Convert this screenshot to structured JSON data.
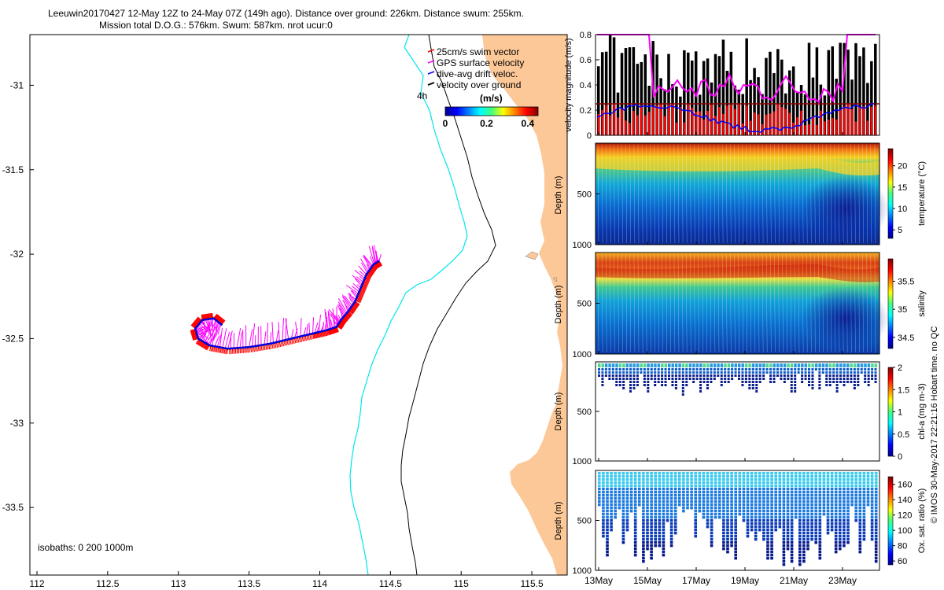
{
  "title": {
    "line1": "Leeuwin20170427 12-May 12Z to 24-May 07Z (149h ago). Distance over ground: 226km. Distance swum: 255km.",
    "line2": "Mission total D.O.G.: 576km. Swum: 587km. nrot ucur:0"
  },
  "side_note": "© IMOS 30-May-2017 22:21:16 Hobart time. no QC",
  "colors": {
    "land": "#fcc898",
    "isobath_200": "#000000",
    "isobath_1000": "#00e5ee",
    "swim": "#ff0000",
    "gps": "#ff00ff",
    "drift": "#0000ff",
    "ground": "#000000"
  },
  "chart_data": [
    {
      "id": "map",
      "type": "scatter",
      "x_ticks": [
        "112",
        "112.5",
        "113",
        "113.5",
        "114",
        "114.5",
        "115",
        "115.5"
      ],
      "y_ticks": [
        "-31",
        "-31.5",
        "-32",
        "-32.5",
        "-33",
        "-33.5"
      ],
      "xlim": [
        111.95,
        115.75
      ],
      "ylim": [
        -33.9,
        -30.7
      ],
      "legend": {
        "placement": "top-right",
        "items": [
          "25cm/s swim vector",
          "GPS surface velocity",
          "dive-avg drift veloc.",
          "velocity over ground"
        ]
      },
      "colorbar": {
        "title": "(m/s)",
        "ticks": [
          "0",
          "0.2",
          "0.4"
        ],
        "range": [
          0,
          0.45
        ]
      },
      "label_4h": "4h",
      "isobaths_note": "isobaths: 0   200   1000m",
      "track": [
        [
          114.42,
          -32.04
        ],
        [
          114.38,
          -32.06
        ],
        [
          114.33,
          -32.12
        ],
        [
          114.29,
          -32.2
        ],
        [
          114.25,
          -32.28
        ],
        [
          114.2,
          -32.34
        ],
        [
          114.15,
          -32.39
        ],
        [
          114.12,
          -32.43
        ],
        [
          114.05,
          -32.45
        ],
        [
          113.95,
          -32.47
        ],
        [
          113.8,
          -32.5
        ],
        [
          113.65,
          -32.53
        ],
        [
          113.5,
          -32.55
        ],
        [
          113.35,
          -32.56
        ],
        [
          113.22,
          -32.54
        ],
        [
          113.14,
          -32.5
        ],
        [
          113.12,
          -32.44
        ],
        [
          113.17,
          -32.39
        ],
        [
          113.25,
          -32.38
        ],
        [
          113.31,
          -32.42
        ]
      ]
    },
    {
      "id": "velocity",
      "type": "bar",
      "ylabel": "velocity magnitude (m/s)",
      "y_ticks": [
        "0",
        "0.2",
        "0.4",
        "0.6",
        "0.8"
      ],
      "ylim": [
        0,
        0.8
      ],
      "reference_line": 0.25
    },
    {
      "id": "temperature",
      "type": "heatmap",
      "ylabel": "Depth (m)",
      "y_ticks": [
        "500",
        "1000"
      ],
      "colorbar_label": "temperature (°C)",
      "colorbar_ticks": [
        "5",
        "10",
        "15",
        "20"
      ],
      "colorbar_range": [
        3,
        24
      ]
    },
    {
      "id": "salinity",
      "type": "heatmap",
      "ylabel": "Depth (m)",
      "y_ticks": [
        "500",
        "1000"
      ],
      "colorbar_label": "salinity",
      "colorbar_ticks": [
        "34.5",
        "35",
        "35.5"
      ],
      "colorbar_range": [
        34.3,
        35.9
      ]
    },
    {
      "id": "chla",
      "type": "scatter",
      "ylabel": "Depth (m)",
      "y_ticks": [
        "500",
        "1000"
      ],
      "colorbar_label": "chl-a (mg m-3)",
      "colorbar_ticks": [
        "0",
        "0.5",
        "1",
        "1.5",
        "2"
      ],
      "colorbar_range": [
        0,
        2
      ]
    },
    {
      "id": "oxygen",
      "type": "scatter",
      "ylabel": "Depth (m)",
      "y_ticks": [
        "500",
        "1000"
      ],
      "colorbar_label": "Ox. sat. ratio (%)",
      "colorbar_ticks": [
        "60",
        "80",
        "100",
        "120",
        "140",
        "160"
      ],
      "colorbar_range": [
        55,
        170
      ]
    },
    {
      "id": "time_axis",
      "type": "line",
      "x_ticks": [
        "13May",
        "15May",
        "17May",
        "19May",
        "21May",
        "23May"
      ]
    }
  ]
}
